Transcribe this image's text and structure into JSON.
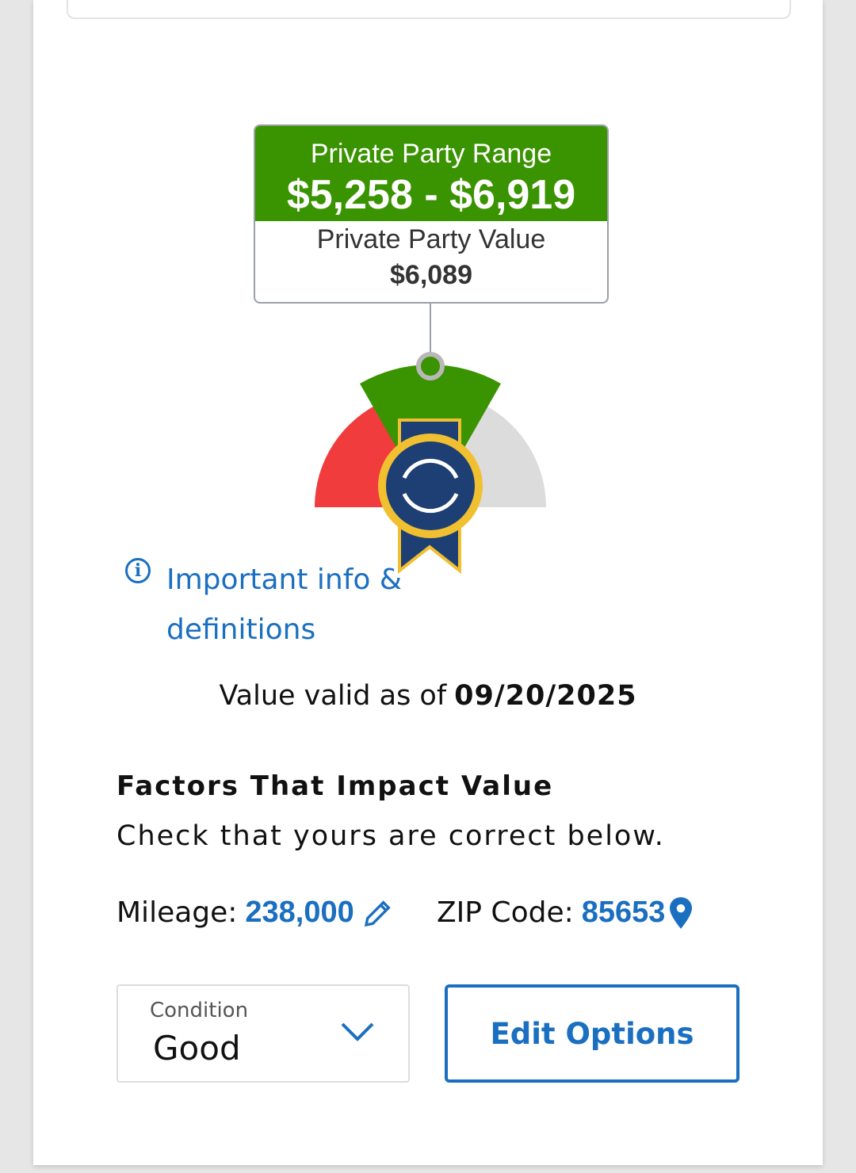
{
  "price_card": {
    "range_label": "Private Party Range",
    "range_value": "$5,258 - $6,919",
    "value_label": "Private Party Value",
    "value": "$6,089"
  },
  "gauge": {
    "colors": {
      "low": "#f03c3c",
      "range": "#3a9300",
      "high": "#dcdcdc",
      "badge": "#1e3f74",
      "badge_trim": "#f0c030"
    }
  },
  "info_link": {
    "icon": "info-icon",
    "label": "Important info & definitions"
  },
  "valid": {
    "label": "Value valid as of",
    "date": "09/20/2025"
  },
  "factors": {
    "title": "Factors That Impact Value",
    "subtitle": "Check that yours are correct below.",
    "mileage_label": "Mileage:",
    "mileage_value": "238,000",
    "zip_label": "ZIP Code:",
    "zip_value": "85653"
  },
  "condition": {
    "label": "Condition",
    "value": "Good"
  },
  "edit_options_label": "Edit Options",
  "colors": {
    "accent": "#1a6fc0",
    "green": "#3a9300"
  }
}
